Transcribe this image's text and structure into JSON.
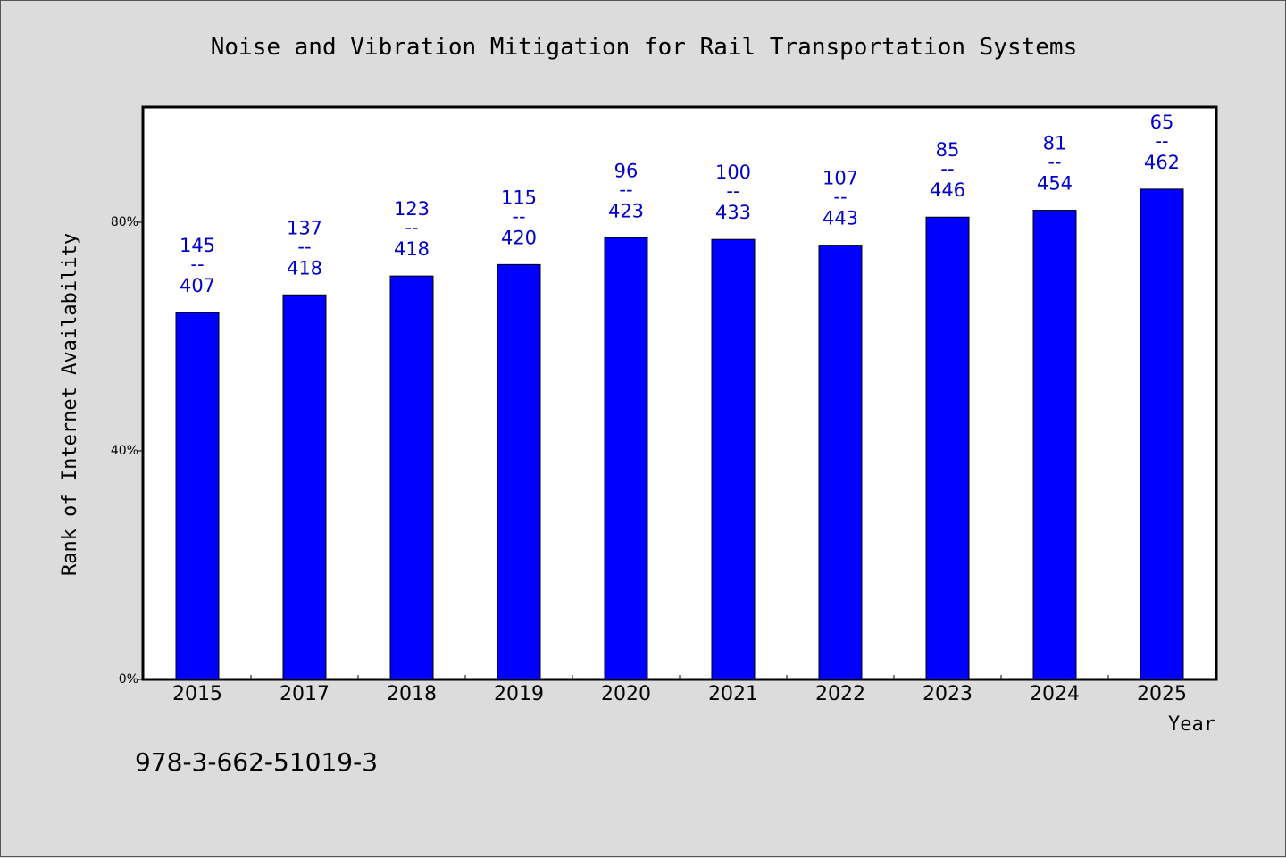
{
  "chart_data": {
    "type": "bar",
    "title": "Noise and Vibration Mitigation for Rail Transportation Systems",
    "xlabel": "Year",
    "ylabel": "Rank of Internet Availability",
    "categories": [
      "2015",
      "2017",
      "2018",
      "2019",
      "2020",
      "2021",
      "2022",
      "2023",
      "2024",
      "2025"
    ],
    "values": [
      64.2,
      67.3,
      70.6,
      72.6,
      77.3,
      77.0,
      76.0,
      80.9,
      82.1,
      85.8
    ],
    "numerators": [
      "145",
      "137",
      "123",
      "115",
      "96",
      "100",
      "107",
      "85",
      "81",
      "65"
    ],
    "denominators": [
      "407",
      "418",
      "418",
      "420",
      "423",
      "433",
      "443",
      "446",
      "454",
      "462"
    ],
    "fraction_separator": "--",
    "ylim": [
      0,
      100
    ],
    "yticks": [
      0,
      40,
      80
    ],
    "ytick_labels": [
      "0%",
      "40%",
      "80%"
    ],
    "grid": false,
    "bar_color": "#0000ff",
    "label_color": "#0000cc"
  },
  "footer_code": "978-3-662-51019-3"
}
